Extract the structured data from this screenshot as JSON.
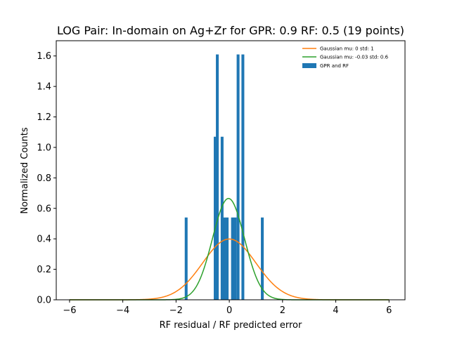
{
  "chart_data": {
    "type": "bar",
    "title": "LOG Pair: In-domain on Ag+Zr for GPR: 0.9 RF: 0.5 (19 points)",
    "xlabel": "RF residual / RF predicted error",
    "ylabel": "Normalized Counts",
    "xlim": [
      -6.5,
      6.6
    ],
    "ylim": [
      0,
      1.7
    ],
    "xticks": [
      -6,
      -4,
      -2,
      0,
      2,
      4,
      6
    ],
    "xtick_labels": [
      "−6",
      "−4",
      "−2",
      "0",
      "2",
      "4",
      "6"
    ],
    "yticks": [
      0.0,
      0.2,
      0.4,
      0.6,
      0.8,
      1.0,
      1.2,
      1.4,
      1.6
    ],
    "ytick_labels": [
      "0.0",
      "0.2",
      "0.4",
      "0.6",
      "0.8",
      "1.0",
      "1.2",
      "1.4",
      "1.6"
    ],
    "grid": false,
    "legend_position": "top-right",
    "histogram": {
      "name": "GPR and RF",
      "color": "#1f77b4",
      "bin_width": 0.107,
      "bins": [
        {
          "x": -1.62,
          "value": 0.54
        },
        {
          "x": -0.53,
          "value": 1.07
        },
        {
          "x": -0.45,
          "value": 1.61
        },
        {
          "x": -0.27,
          "value": 1.07
        },
        {
          "x": -0.18,
          "value": 0.54
        },
        {
          "x": -0.08,
          "value": 0.54
        },
        {
          "x": 0.12,
          "value": 0.54
        },
        {
          "x": 0.22,
          "value": 0.54
        },
        {
          "x": 0.33,
          "value": 1.61
        },
        {
          "x": 0.51,
          "value": 1.61
        },
        {
          "x": 1.24,
          "value": 0.54
        }
      ]
    },
    "series": [
      {
        "name": "Gaussian mu: 0 std: 1",
        "type": "gaussian",
        "mu": 0,
        "std": 1,
        "color": "#ff7f0e"
      },
      {
        "name": "Gaussian mu: -0.03 std: 0.6",
        "type": "gaussian",
        "mu": -0.03,
        "std": 0.6,
        "color": "#2ca02c"
      }
    ],
    "curve_x_range": [
      -6,
      6
    ]
  }
}
